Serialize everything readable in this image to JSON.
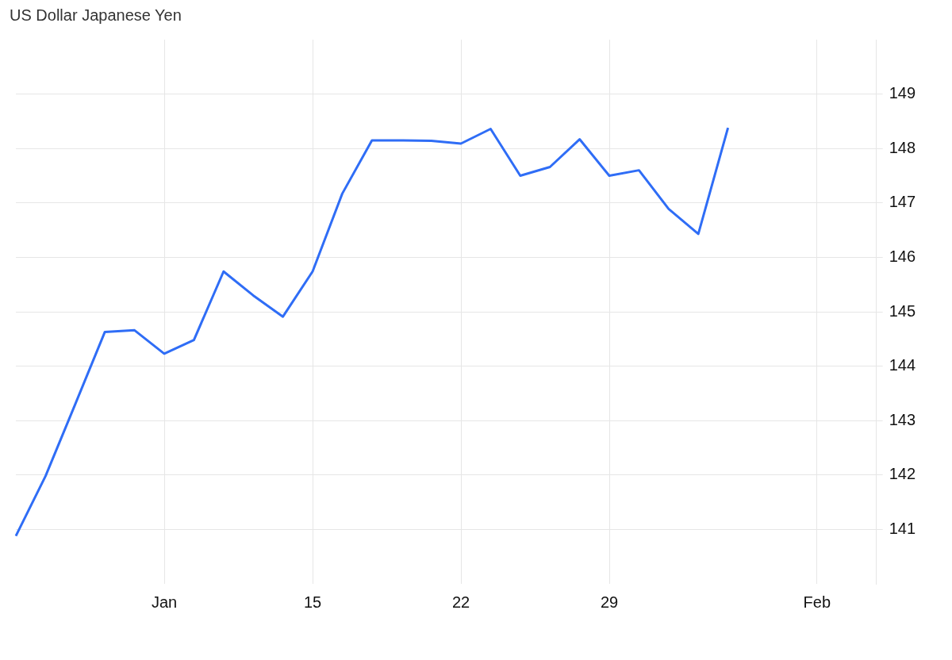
{
  "chart_data": {
    "type": "line",
    "title": "US Dollar Japanese Yen",
    "categories": [
      null,
      null,
      null,
      null,
      null,
      "Jan",
      null,
      null,
      null,
      null,
      "15",
      null,
      null,
      null,
      null,
      "22",
      null,
      null,
      null,
      null,
      "29",
      null,
      null,
      null,
      null,
      null,
      null,
      "Feb",
      null,
      null
    ],
    "series": [
      {
        "color": "#2f6df6",
        "values": [
          140.88,
          141.98,
          143.3,
          144.63,
          144.66,
          144.23,
          144.48,
          145.74,
          145.3,
          144.91,
          145.74,
          147.17,
          148.15,
          148.15,
          148.14,
          148.09,
          148.36,
          147.5,
          147.66,
          148.17,
          147.5,
          147.6,
          146.89,
          146.43,
          148.38,
          null,
          null,
          null,
          null,
          null
        ]
      }
    ],
    "ylim": [
      140,
      150
    ],
    "yticks": [
      141,
      142,
      143,
      144,
      145,
      146,
      147,
      148,
      149
    ],
    "grid": true,
    "legend": false,
    "marker": "none",
    "line_style": "solid"
  }
}
